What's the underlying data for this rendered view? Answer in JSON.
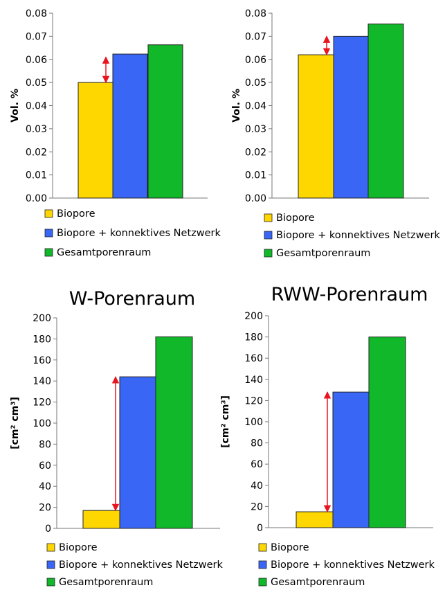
{
  "colors": {
    "biopore": "#FFD700",
    "netzwerk": "#3A66F5",
    "gesamt": "#10B82A",
    "arrow": "#E8141E"
  },
  "chart_data": [
    {
      "type": "bar",
      "title": "",
      "ylabel": "Vol. %",
      "ylim": [
        0,
        0.08
      ],
      "yticks": [
        "0.00",
        "0.01",
        "0.02",
        "0.03",
        "0.04",
        "0.05",
        "0.06",
        "0.07",
        "0.08"
      ],
      "series": [
        {
          "name": "Biopore",
          "values": [
            0.05
          ]
        },
        {
          "name": "Biopore + konnektives Netzwerk",
          "values": [
            0.0623
          ]
        },
        {
          "name": "Gesamtporenraum",
          "values": [
            0.0663
          ]
        }
      ],
      "legend": [
        "Biopore",
        "Biopore + konnektives Netzwerk",
        "Gesamtporenraum"
      ],
      "arrow": {
        "from": 0.05,
        "to": 0.061
      }
    },
    {
      "type": "bar",
      "title": "",
      "ylabel": "Vol. %",
      "ylim": [
        0,
        0.08
      ],
      "yticks": [
        "0.00",
        "0.01",
        "0.02",
        "0.03",
        "0.04",
        "0.05",
        "0.06",
        "0.07",
        "0.08"
      ],
      "series": [
        {
          "name": "Biopore",
          "values": [
            0.062
          ]
        },
        {
          "name": "Biopore + konnektives Netzwerk",
          "values": [
            0.07
          ]
        },
        {
          "name": "Gesamtporenraum",
          "values": [
            0.0753
          ]
        }
      ],
      "legend": [
        "Biopore",
        "Biopore + konnektives Netzwerk",
        "Gesamtporenraum"
      ],
      "arrow": {
        "from": 0.062,
        "to": 0.07
      }
    },
    {
      "type": "bar",
      "title": "W-Porenraum",
      "ylabel": "[cm² cm³]",
      "ylim": [
        0,
        200
      ],
      "yticks": [
        "0",
        "20",
        "40",
        "60",
        "80",
        "100",
        "120",
        "140",
        "160",
        "180",
        "200"
      ],
      "series": [
        {
          "name": "Biopore",
          "values": [
            17
          ]
        },
        {
          "name": "Biopore + konnektives Netzwerk",
          "values": [
            144
          ]
        },
        {
          "name": "Gesamtporenraum",
          "values": [
            182
          ]
        }
      ],
      "legend": [
        "Biopore",
        "Biopore + konnektives Netzwerk",
        "Gesamtporenraum"
      ],
      "arrow": {
        "from": 17,
        "to": 144
      }
    },
    {
      "type": "bar",
      "title": "RWW-Porenraum",
      "ylabel": "[cm² cm³]",
      "ylim": [
        0,
        200
      ],
      "yticks": [
        "0",
        "20",
        "40",
        "60",
        "80",
        "100",
        "120",
        "140",
        "160",
        "180",
        "200"
      ],
      "series": [
        {
          "name": "Biopore",
          "values": [
            15
          ]
        },
        {
          "name": "Biopore + konnektives Netzwerk",
          "values": [
            128
          ]
        },
        {
          "name": "Gesamtporenraum",
          "values": [
            180
          ]
        }
      ],
      "legend": [
        "Biopore",
        "Biopore + konnektives Netzwerk",
        "Gesamtporenraum"
      ],
      "arrow": {
        "from": 15,
        "to": 128
      }
    }
  ]
}
